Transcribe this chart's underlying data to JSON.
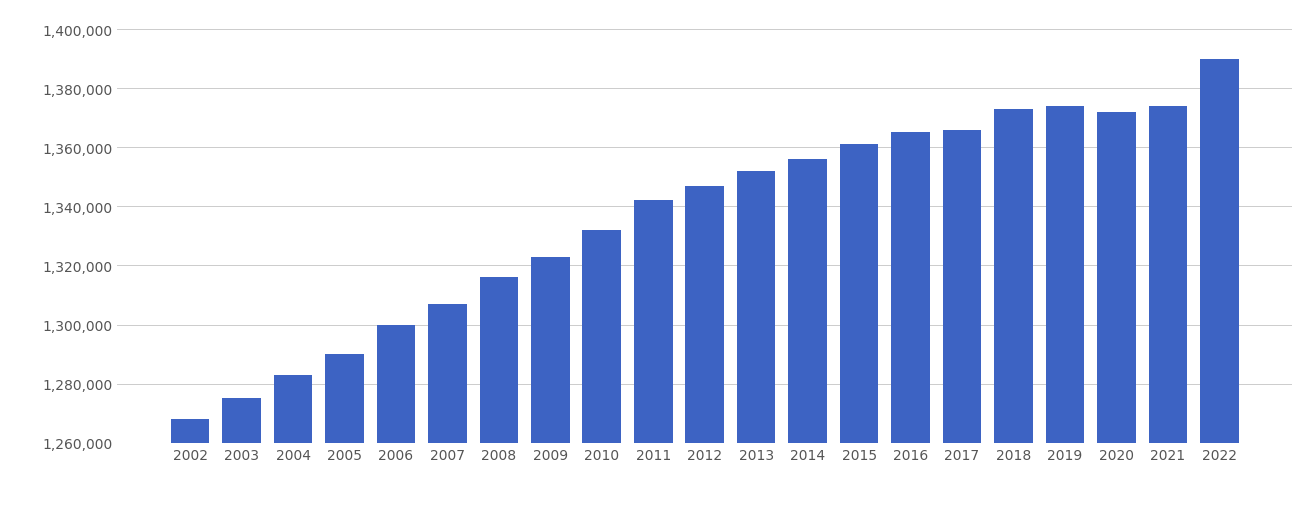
{
  "years": [
    2002,
    2003,
    2004,
    2005,
    2006,
    2007,
    2008,
    2009,
    2010,
    2011,
    2012,
    2013,
    2014,
    2015,
    2016,
    2017,
    2018,
    2019,
    2020,
    2021,
    2022
  ],
  "values": [
    1268000,
    1275000,
    1283000,
    1290000,
    1300000,
    1307000,
    1316000,
    1323000,
    1332000,
    1342000,
    1347000,
    1352000,
    1356000,
    1361000,
    1365000,
    1366000,
    1373000,
    1374000,
    1372000,
    1374000,
    1390000
  ],
  "bar_color": "#3d63c3",
  "background_color": "#ffffff",
  "grid_color": "#cccccc",
  "ylim_min": 1260000,
  "ylim_max": 1405000,
  "ytick_min": 1260000,
  "ytick_max": 1400000,
  "ytick_step": 20000,
  "title": "",
  "xlabel": "",
  "ylabel": ""
}
